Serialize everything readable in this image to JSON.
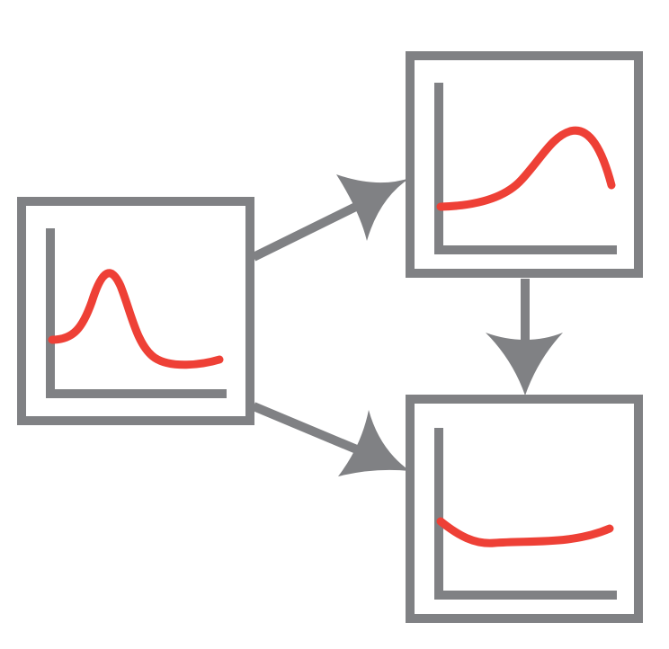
{
  "colors": {
    "background": "#ffffff",
    "frame": "#808184",
    "curve": "#ee4036"
  },
  "nodes": [
    {
      "id": "left",
      "icon": "peaked-curve-plot-icon",
      "curve_shape": "sharp peak"
    },
    {
      "id": "top-right",
      "icon": "rising-curve-plot-icon",
      "curve_shape": "broad late peak"
    },
    {
      "id": "bottom-right",
      "icon": "flat-curve-plot-icon",
      "curve_shape": "flat"
    }
  ],
  "edges": [
    {
      "from": "left",
      "to": "top-right"
    },
    {
      "from": "left",
      "to": "bottom-right"
    },
    {
      "from": "top-right",
      "to": "bottom-right"
    }
  ]
}
